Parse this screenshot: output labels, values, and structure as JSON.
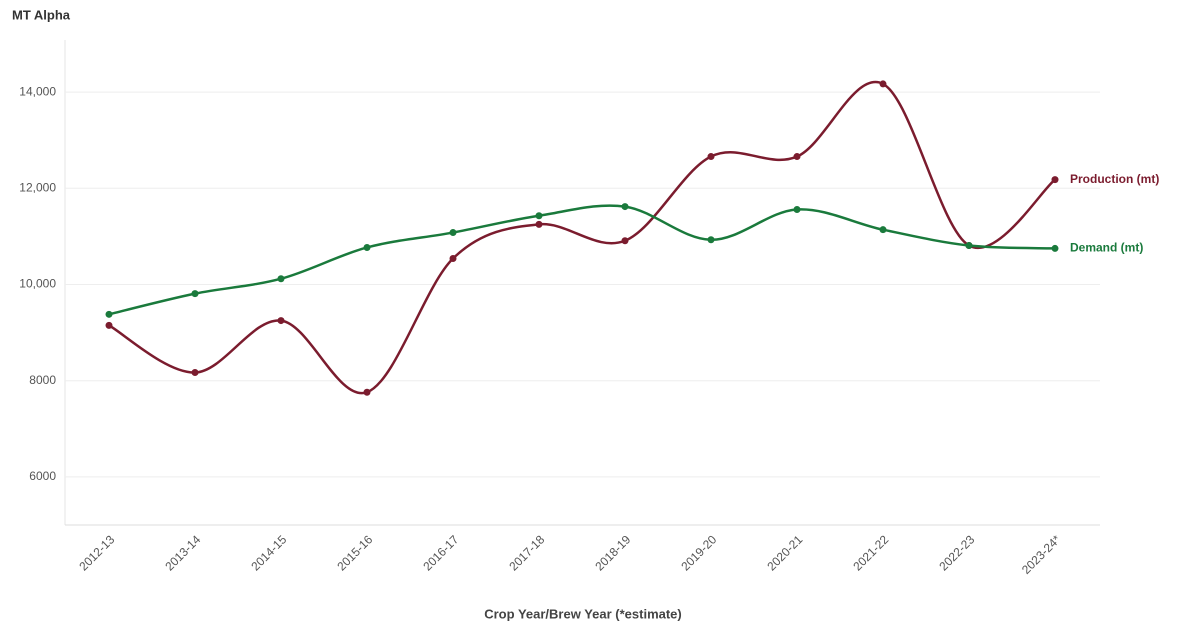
{
  "chart_data": {
    "type": "line",
    "title": "MT Alpha",
    "x_label": "Crop Year/Brew Year (*estimate)",
    "categories": [
      "2012-13",
      "2013-14",
      "2014-15",
      "2015-16",
      "2016-17",
      "2017-18",
      "2018-19",
      "2019-20",
      "2020-21",
      "2021-22",
      "2022-23",
      "2023-24*"
    ],
    "series": [
      {
        "name": "Production (mt)",
        "color": "#7b1c2e",
        "values": [
          9150,
          8170,
          9250,
          7760,
          10540,
          11250,
          10910,
          12660,
          12660,
          14170,
          10810,
          12180
        ]
      },
      {
        "name": "Demand (mt)",
        "color": "#1a7a3c",
        "values": [
          9380,
          9810,
          10120,
          10770,
          11080,
          11430,
          11620,
          10930,
          11560,
          11140,
          10810,
          10750
        ]
      }
    ],
    "ylim": [
      5000,
      15000
    ],
    "yticks": [
      6000,
      8000,
      {
        "value": 10000,
        "label": "10,000"
      },
      {
        "value": 12000,
        "label": "12,000"
      },
      {
        "value": 14000,
        "label": "14,000"
      }
    ],
    "grid": true,
    "smooth": true
  }
}
